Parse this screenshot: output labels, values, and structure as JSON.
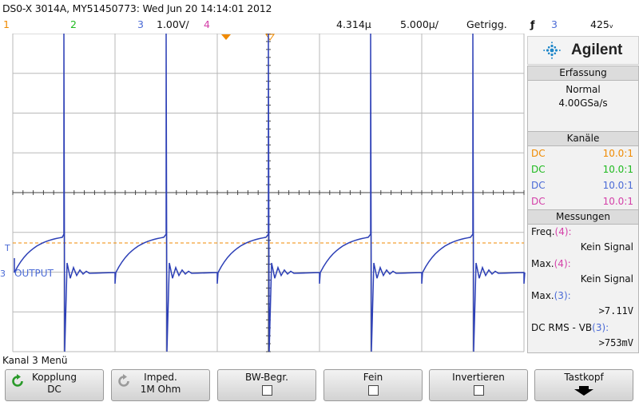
{
  "header": {
    "title": "DS0-X 3014A, MY51450773: Wed Jun 20 14:14:01 2012",
    "channels": [
      "1",
      "2",
      "3",
      "1.00V/",
      "4"
    ],
    "delay": "4.314µ",
    "timebase": "5.000µ/",
    "trigger_status": "Getrigg.",
    "trigger_source": "3",
    "trigger_level": "425ᵥ"
  },
  "brand": {
    "name": "Agilent"
  },
  "colors": {
    "ch1": "#f08a00",
    "ch2": "#1fba1f",
    "ch3": "#4a6ad6",
    "ch4": "#d43fa8",
    "trace": "#2c3fb6"
  },
  "scope": {
    "trace_label": "OUTPUT",
    "ground_marker": "3",
    "trigger_marker": "T"
  },
  "side": {
    "acquisition": {
      "title": "Erfassung",
      "mode": "Normal",
      "rate": "4.00GSa/s"
    },
    "channels": {
      "title": "Kanäle",
      "rows": [
        {
          "coupling": "DC",
          "probe": "10.0:1"
        },
        {
          "coupling": "DC",
          "probe": "10.0:1"
        },
        {
          "coupling": "DC",
          "probe": "10.0:1"
        },
        {
          "coupling": "DC",
          "probe": "10.0:1"
        }
      ]
    },
    "measurements": {
      "title": "Messungen",
      "items": [
        {
          "name": "Freq.",
          "ch": "(4):",
          "value": "Kein Signal"
        },
        {
          "name": "Max.",
          "ch": "(4):",
          "value": "Kein Signal"
        },
        {
          "name": "Max.",
          "ch": "(3):",
          "value": ">7.11V"
        },
        {
          "name": "DC RMS - VB",
          "ch": "(3):",
          "value": ">753mV"
        }
      ]
    }
  },
  "menu": {
    "title": "Kanal 3 Menü",
    "softkeys": [
      {
        "label": "Kopplung",
        "value": "DC"
      },
      {
        "label": "Imped.",
        "value": "1M Ohm"
      },
      {
        "label": "BW-Begr.",
        "value": ""
      },
      {
        "label": "Fein",
        "value": ""
      },
      {
        "label": "Invertieren",
        "value": ""
      },
      {
        "label": "Tastkopf",
        "value": ""
      }
    ]
  }
}
